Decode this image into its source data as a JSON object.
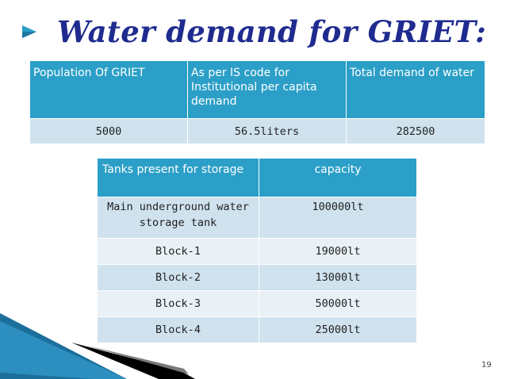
{
  "slide": {
    "title": "Water demand for GRIET:",
    "page_number": "19"
  },
  "demand_table": {
    "headers": [
      "Population Of GRIET",
      "As per  IS code for Institutional per capita demand",
      "Total demand of water"
    ],
    "row": [
      "5000",
      "56.5liters",
      "282500"
    ]
  },
  "tanks_table": {
    "headers": [
      "Tanks present  for storage",
      "capacity"
    ],
    "rows": [
      [
        "Main underground water storage tank",
        "100000lt"
      ],
      [
        "Block-1",
        "19000lt"
      ],
      [
        "Block-2",
        "13000lt"
      ],
      [
        "Block-3",
        "50000lt"
      ],
      [
        "Block-4",
        "25000lt"
      ]
    ]
  },
  "colors": {
    "title": "#1f2b8f",
    "header_fill": "#2b9fc7",
    "row_fill_a": "#cfe2ee",
    "row_fill_b": "#e9f1f6"
  }
}
